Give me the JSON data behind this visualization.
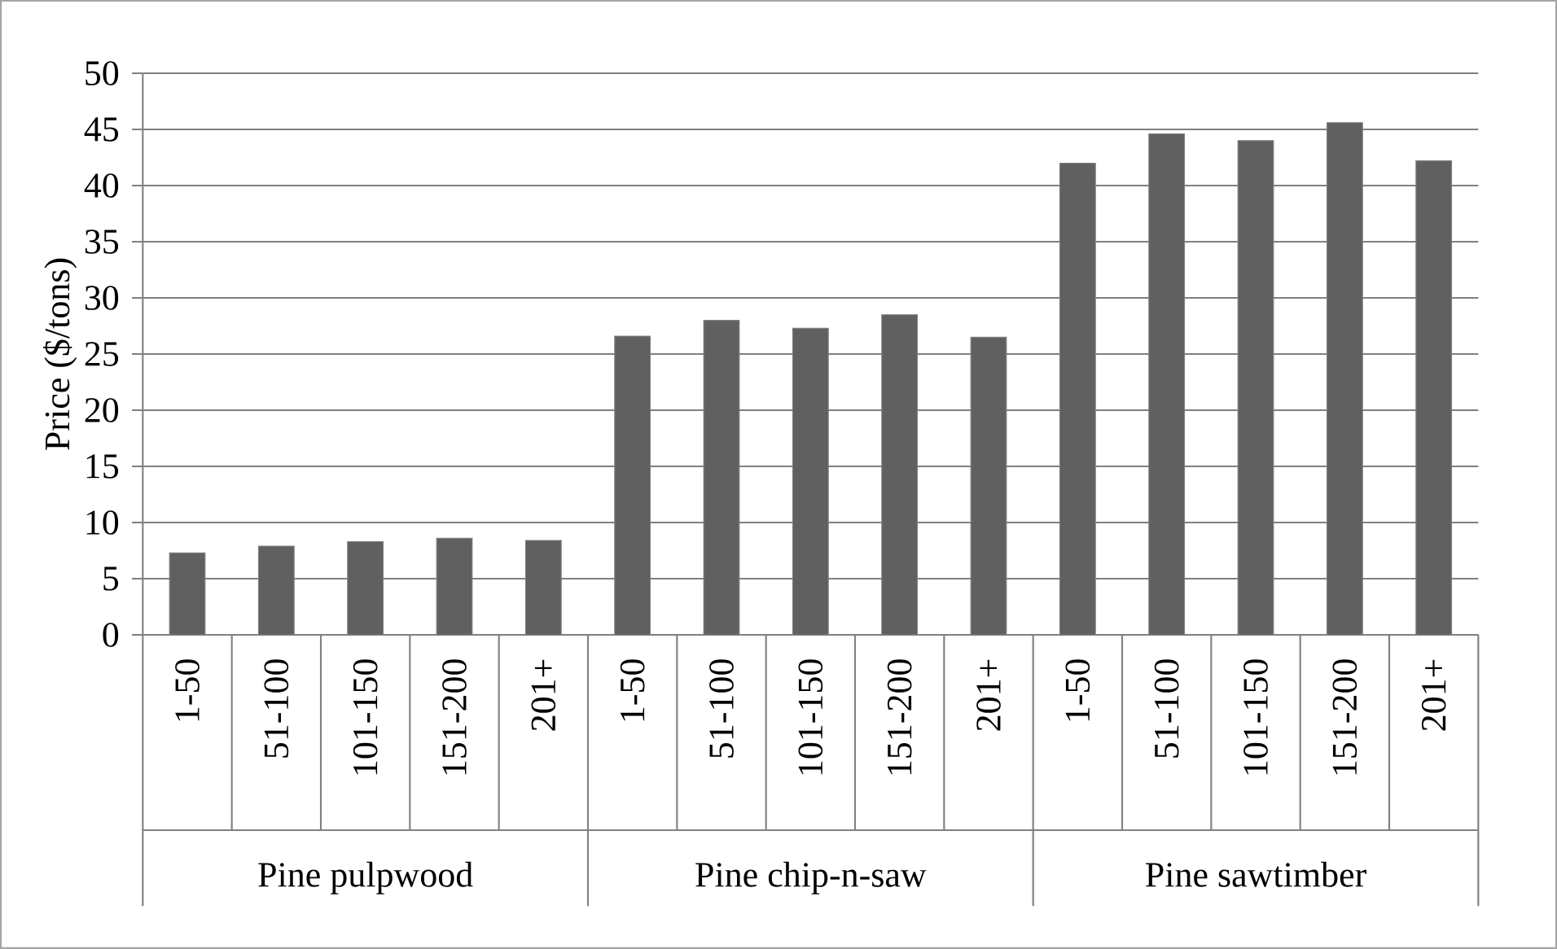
{
  "chart_data": {
    "type": "bar",
    "ylabel": "Price ($/tons)",
    "categories": [
      "1-50",
      "51-100",
      "101-150",
      "151-200",
      "201+",
      "1-50",
      "51-100",
      "101-150",
      "151-200",
      "201+",
      "1-50",
      "51-100",
      "101-150",
      "151-200",
      "201+"
    ],
    "values": [
      7.3,
      7.9,
      8.3,
      8.6,
      8.4,
      26.6,
      28.0,
      27.3,
      28.5,
      26.5,
      42.0,
      44.6,
      44.0,
      45.6,
      42.2
    ],
    "color": "#606060",
    "ylim": [
      0,
      50
    ],
    "yticks": [
      0,
      5,
      10,
      15,
      20,
      25,
      30,
      35,
      40,
      45,
      50
    ],
    "grid": "y",
    "annotations": [
      "Pine pulpwood",
      "Pine chip-n-saw",
      "Pine sawtimber"
    ]
  }
}
